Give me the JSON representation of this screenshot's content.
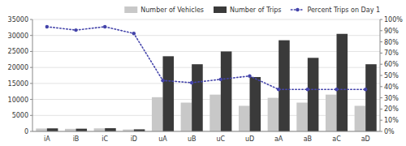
{
  "chart_data": {
    "type": "bar",
    "categories": [
      "iA",
      "iB",
      "iC",
      "iD",
      "uA",
      "uB",
      "uC",
      "uD",
      "aA",
      "aB",
      "aC",
      "aD"
    ],
    "series": [
      {
        "name": "Number of Vehicles",
        "color": "#c8c8c8",
        "values": [
          900,
          800,
          950,
          600,
          10700,
          9000,
          11500,
          8000,
          10500,
          9000,
          11500,
          8000
        ]
      },
      {
        "name": "Number of Trips",
        "color": "#3a3a3a",
        "values": [
          950,
          850,
          1000,
          650,
          23500,
          21000,
          25000,
          17000,
          28500,
          23000,
          30500,
          21000
        ]
      },
      {
        "name": "Percent Trips on Day 1",
        "color": "#4444aa",
        "type": "line",
        "axis": "y2",
        "line_style": "dotted",
        "marker": "circle",
        "values": [
          0.935,
          0.905,
          0.935,
          0.875,
          0.455,
          0.435,
          0.465,
          0.495,
          0.375,
          0.375,
          0.375,
          0.375
        ]
      }
    ],
    "ylim": [
      0,
      35000
    ],
    "yticks": [
      0,
      5000,
      10000,
      15000,
      20000,
      25000,
      30000,
      35000
    ],
    "y2lim": [
      0,
      1.0
    ],
    "y2ticks": [
      {
        "value": 0.0,
        "label": "0%"
      },
      {
        "value": 0.1,
        "label": "10%"
      },
      {
        "value": 0.2,
        "label": "20%"
      },
      {
        "value": 0.3,
        "label": "30%"
      },
      {
        "value": 0.4,
        "label": "40%"
      },
      {
        "value": 0.5,
        "label": "50%"
      },
      {
        "value": 0.6,
        "label": "60%"
      },
      {
        "value": 0.7,
        "label": "70%"
      },
      {
        "value": 0.8,
        "label": "80%"
      },
      {
        "value": 0.9,
        "label": "90%"
      },
      {
        "value": 1.0,
        "label": "100%"
      }
    ],
    "grid": true,
    "legend": "upper right"
  }
}
